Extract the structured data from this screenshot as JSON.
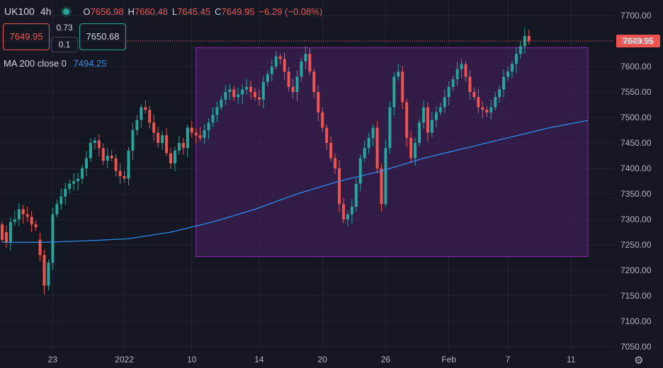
{
  "header": {
    "symbol": "UK100",
    "timeframe": "4h",
    "open_label": "O",
    "open": "7656.98",
    "high_label": "H",
    "high": "7660.48",
    "low_label": "L",
    "low": "7645.45",
    "close_label": "C",
    "close": "7649.95",
    "change": "−6.29 (−0.08%)"
  },
  "trade": {
    "sell_price": "7649.95",
    "spread_top": "0.73",
    "spread_bottom": "0.1",
    "buy_price": "7650.68"
  },
  "indicator": {
    "label": "MA 200 close 0",
    "value": "7494.25"
  },
  "last_price_label": "7649.95",
  "colors": {
    "background": "#131722",
    "up": "#26a69a",
    "down": "#ef5350",
    "ma": "#2d8cf0",
    "rect_fill": "#3b1f52",
    "rect_stroke": "#8a2ba8",
    "grid": "#1f2433"
  },
  "chart_data": {
    "type": "candlestick",
    "ylim": [
      7050,
      7700
    ],
    "y_ticks": [
      "7700.00",
      "7650.00",
      "7600.00",
      "7550.00",
      "7500.00",
      "7450.00",
      "7400.00",
      "7350.00",
      "7300.00",
      "7250.00",
      "7200.00",
      "7150.00",
      "7100.00",
      "7050.00"
    ],
    "x_ticks": [
      "23",
      "2022",
      "10",
      "14",
      "20",
      "26",
      "Feb",
      "7",
      "11"
    ],
    "x_tick_index": [
      12,
      29,
      45,
      61,
      76,
      91,
      106,
      120,
      135
    ],
    "candles_close": [
      7260,
      7255,
      7295,
      7300,
      7320,
      7310,
      7305,
      7290,
      7285,
      7230,
      7170,
      7215,
      7310,
      7330,
      7345,
      7360,
      7370,
      7375,
      7380,
      7400,
      7420,
      7450,
      7455,
      7440,
      7415,
      7425,
      7420,
      7395,
      7385,
      7380,
      7435,
      7475,
      7495,
      7520,
      7515,
      7490,
      7470,
      7450,
      7465,
      7430,
      7410,
      7435,
      7450,
      7440,
      7480,
      7470,
      7465,
      7460,
      7475,
      7490,
      7505,
      7520,
      7535,
      7550,
      7555,
      7540,
      7545,
      7555,
      7560,
      7550,
      7540,
      7535,
      7570,
      7585,
      7600,
      7620,
      7615,
      7590,
      7560,
      7550,
      7580,
      7610,
      7625,
      7590,
      7550,
      7510,
      7480,
      7450,
      7420,
      7400,
      7330,
      7300,
      7310,
      7325,
      7370,
      7420,
      7440,
      7460,
      7480,
      7400,
      7330,
      7440,
      7520,
      7580,
      7590,
      7530,
      7460,
      7420,
      7450,
      7490,
      7520,
      7470,
      7495,
      7510,
      7520,
      7540,
      7560,
      7575,
      7595,
      7605,
      7580,
      7550,
      7540,
      7520,
      7515,
      7510,
      7520,
      7540,
      7555,
      7580,
      7590,
      7605,
      7625,
      7640,
      7660,
      7650
    ],
    "candles_open": [
      7290,
      7275,
      7255,
      7295,
      7300,
      7320,
      7310,
      7305,
      7290,
      7260,
      7230,
      7170,
      7215,
      7310,
      7330,
      7345,
      7360,
      7370,
      7375,
      7380,
      7400,
      7420,
      7450,
      7455,
      7440,
      7415,
      7425,
      7420,
      7395,
      7385,
      7380,
      7435,
      7475,
      7495,
      7520,
      7515,
      7490,
      7470,
      7450,
      7465,
      7430,
      7410,
      7435,
      7450,
      7440,
      7480,
      7470,
      7465,
      7460,
      7475,
      7490,
      7505,
      7520,
      7535,
      7550,
      7555,
      7540,
      7545,
      7555,
      7560,
      7550,
      7540,
      7535,
      7570,
      7585,
      7600,
      7620,
      7615,
      7590,
      7560,
      7550,
      7580,
      7610,
      7625,
      7590,
      7550,
      7510,
      7480,
      7450,
      7420,
      7400,
      7330,
      7300,
      7310,
      7325,
      7370,
      7420,
      7440,
      7460,
      7480,
      7400,
      7330,
      7440,
      7520,
      7580,
      7590,
      7530,
      7460,
      7420,
      7450,
      7490,
      7520,
      7470,
      7495,
      7510,
      7520,
      7540,
      7560,
      7575,
      7595,
      7605,
      7580,
      7550,
      7540,
      7520,
      7515,
      7510,
      7520,
      7540,
      7555,
      7580,
      7590,
      7605,
      7625,
      7640,
      7660
    ],
    "ma200": [
      [
        0,
        7255
      ],
      [
        10,
        7255
      ],
      [
        20,
        7258
      ],
      [
        30,
        7262
      ],
      [
        40,
        7275
      ],
      [
        50,
        7295
      ],
      [
        60,
        7320
      ],
      [
        70,
        7350
      ],
      [
        80,
        7375
      ],
      [
        90,
        7395
      ],
      [
        100,
        7420
      ],
      [
        110,
        7440
      ],
      [
        120,
        7460
      ],
      [
        130,
        7480
      ],
      [
        139,
        7494.25
      ]
    ],
    "highlight_range": {
      "x_start_index": 46,
      "x_end_index": 139,
      "y_low": 7227,
      "y_high": 7637
    }
  }
}
